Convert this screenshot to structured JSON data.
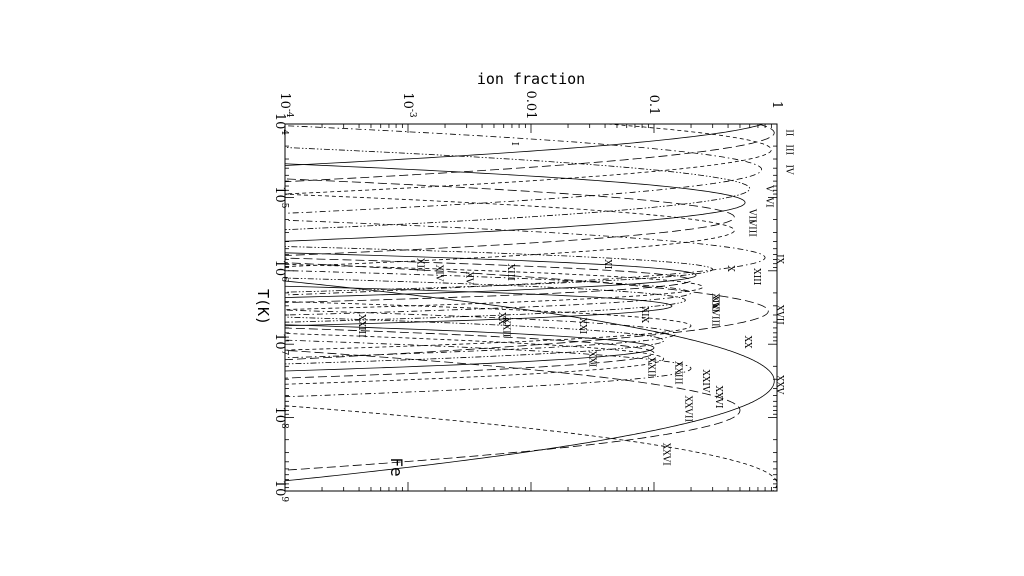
{
  "chart_data": {
    "type": "line",
    "orientation": "rotated-90",
    "xlabel": "T(K)",
    "ylabel": "ion fraction",
    "xscale": "log",
    "yscale": "log",
    "xlim": [
      10000,
      1000000000
    ],
    "ylim": [
      0.0001,
      1
    ],
    "x_ticks": [
      {
        "value": 10000,
        "base": "10",
        "exp": "4"
      },
      {
        "value": 100000,
        "base": "10",
        "exp": "5"
      },
      {
        "value": 1000000,
        "base": "10",
        "exp": "6"
      },
      {
        "value": 10000000,
        "base": "10",
        "exp": "7"
      },
      {
        "value": 100000000,
        "base": "10",
        "exp": "8"
      },
      {
        "value": 1000000000,
        "base": "10",
        "exp": "9"
      }
    ],
    "y_ticks": [
      {
        "value": 0.0001,
        "base": "10",
        "exp": "-4"
      },
      {
        "value": 0.001,
        "base": "10",
        "exp": "-3"
      },
      {
        "value": 0.01,
        "text": "0.01"
      },
      {
        "value": 0.1,
        "text": "0.1"
      },
      {
        "value": 1,
        "text": "1"
      }
    ],
    "element": "Fe",
    "series": [
      {
        "name": "I",
        "peak_logT": 3.9,
        "peak_frac": 0.95,
        "width": 0.22,
        "style": "solid",
        "label_logT": 4.27,
        "label_frac": 0.007
      },
      {
        "name": "II",
        "peak_logT": 4.12,
        "peak_frac": 0.95,
        "width": 0.22,
        "style": "longdash",
        "label_logT": 4.12,
        "label_frac": 1.2
      },
      {
        "name": "III",
        "peak_logT": 4.35,
        "peak_frac": 0.9,
        "width": 0.2,
        "style": "dash",
        "label_logT": 4.35,
        "label_frac": 1.2
      },
      {
        "name": "IV",
        "peak_logT": 4.62,
        "peak_frac": 0.75,
        "width": 0.2,
        "style": "dashdot",
        "label_logT": 4.62,
        "label_frac": 1.2
      },
      {
        "name": "V",
        "peak_logT": 4.88,
        "peak_frac": 0.6,
        "width": 0.19,
        "style": "dashdotdot",
        "label_logT": 4.88,
        "label_frac": 0.82
      },
      {
        "name": "VI",
        "peak_logT": 5.07,
        "peak_frac": 0.55,
        "width": 0.18,
        "style": "solid",
        "label_logT": 5.07,
        "label_frac": 0.82
      },
      {
        "name": "VII",
        "peak_logT": 5.27,
        "peak_frac": 0.45,
        "width": 0.18,
        "style": "longdash",
        "label_logT": 5.25,
        "label_frac": 0.6
      },
      {
        "name": "VIII",
        "peak_logT": 5.45,
        "peak_frac": 0.45,
        "width": 0.17,
        "style": "dash",
        "label_logT": 5.42,
        "label_frac": 0.6
      },
      {
        "name": "IX",
        "peak_logT": 5.82,
        "peak_frac": 0.8,
        "width": 0.17,
        "style": "dashdot",
        "label_logT": 5.84,
        "label_frac": 1.0
      },
      {
        "name": "X",
        "peak_logT": 5.98,
        "peak_frac": 0.3,
        "width": 0.11,
        "style": "dashdotdot",
        "label_logT": 5.97,
        "label_frac": 0.4
      },
      {
        "name": "XI",
        "peak_logT": 6.06,
        "peak_frac": 0.22,
        "width": 0.11,
        "style": "solid",
        "label_logT": 5.91,
        "label_frac": 0.04
      },
      {
        "name": "XII",
        "peak_logT": 6.13,
        "peak_frac": 0.2,
        "width": 0.11,
        "style": "longdash",
        "label_logT": 5.92,
        "label_frac": 0.0012
      },
      {
        "name": "XIII",
        "peak_logT": 6.22,
        "peak_frac": 0.25,
        "width": 0.11,
        "style": "dash",
        "label_logT": 6.08,
        "label_frac": 0.65,
        "label2_logT": 6.02,
        "label2_frac": 0.0065
      },
      {
        "name": "XIV",
        "peak_logT": 6.3,
        "peak_frac": 0.2,
        "width": 0.11,
        "style": "dashdot",
        "label_logT": 6.03,
        "label_frac": 0.0017,
        "label2_logT": 6.42,
        "label2_frac": 0.3
      },
      {
        "name": "XV",
        "peak_logT": 6.4,
        "peak_frac": 0.18,
        "width": 0.11,
        "style": "dashdotdot",
        "label_logT": 6.1,
        "label_frac": 0.003
      },
      {
        "name": "XVI",
        "peak_logT": 6.48,
        "peak_frac": 0.14,
        "width": 0.1,
        "style": "solid",
        "label_logT": 6.45,
        "label_frac": 0.3
      },
      {
        "name": "XVII",
        "peak_logT": 6.55,
        "peak_frac": 0.85,
        "width": 0.22,
        "style": "longdash",
        "label_logT": 6.6,
        "label_frac": 1.0
      },
      {
        "name": "XVIII",
        "peak_logT": 6.75,
        "peak_frac": 0.2,
        "width": 0.12,
        "style": "dash",
        "label_logT": 6.6,
        "label_frac": 0.3
      },
      {
        "name": "XIX",
        "peak_logT": 6.86,
        "peak_frac": 0.15,
        "width": 0.12,
        "style": "dashdot",
        "label_logT": 6.6,
        "label_frac": 0.08
      },
      {
        "name": "XX",
        "peak_logT": 6.95,
        "peak_frac": 0.12,
        "width": 0.12,
        "style": "dashdotdot",
        "label_logT": 6.97,
        "label_frac": 0.55,
        "label2_logT": 6.65,
        "label2_frac": 0.0055
      },
      {
        "name": "XXI",
        "peak_logT": 7.05,
        "peak_frac": 0.1,
        "width": 0.12,
        "style": "solid",
        "label_logT": 6.75,
        "label_frac": 0.025,
        "label2_logT": 7.2,
        "label2_frac": 0.03
      },
      {
        "name": "XXII",
        "peak_logT": 7.12,
        "peak_frac": 0.1,
        "width": 0.13,
        "style": "longdash",
        "label_logT": 6.77,
        "label_frac": 0.006,
        "label2_logT": 7.31,
        "label2_frac": 0.09
      },
      {
        "name": "XXIII",
        "peak_logT": 7.2,
        "peak_frac": 0.12,
        "width": 0.13,
        "style": "dash",
        "label_logT": 6.75,
        "label_frac": 0.0004,
        "label2_logT": 7.39,
        "label2_frac": 0.15
      },
      {
        "name": "XXIV",
        "peak_logT": 7.33,
        "peak_frac": 0.2,
        "width": 0.14,
        "style": "dashdot",
        "label_logT": 7.5,
        "label_frac": 0.25
      },
      {
        "name": "XXV",
        "peak_logT": 7.5,
        "peak_frac": 0.95,
        "width": 0.45,
        "style": "solid",
        "label_logT": 7.55,
        "label_frac": 1.0
      },
      {
        "name": "XXVI",
        "peak_logT": 7.9,
        "peak_frac": 0.5,
        "width": 0.28,
        "style": "longdash",
        "label_logT": 7.72,
        "label_frac": 0.32,
        "label2_logT": 8.5,
        "label2_frac": 0.12
      },
      {
        "name": "XXVII",
        "peak_logT": 8.9,
        "peak_frac": 1.0,
        "width": 0.35,
        "style": "dash",
        "label_logT": 7.88,
        "label_frac": 0.18
      }
    ],
    "grid": false,
    "legend": "none"
  }
}
